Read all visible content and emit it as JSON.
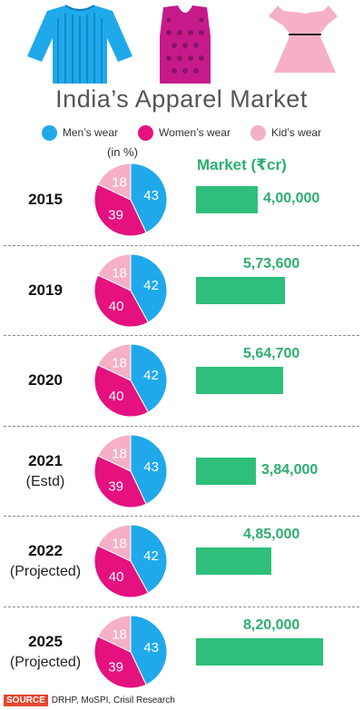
{
  "colors": {
    "mens": "#1fa9ea",
    "womens": "#e5117f",
    "kids": "#f5b0c7",
    "bar": "#2ebf7b",
    "value_text": "#2dae6e"
  },
  "header": {
    "title": "India’s Apparel Market"
  },
  "legend": {
    "items": [
      "Men’s wear",
      "Women’s wear",
      "Kid’s wear"
    ]
  },
  "unit_note": "(in %)",
  "market_header": "Market (₹cr)",
  "footer": {
    "source_tag": "SOURCE",
    "source_text": "DRHP, MoSPI, Crisil Research"
  },
  "icons": [
    "shirt-icon",
    "kurta-icon",
    "frock-icon"
  ],
  "chart_data": {
    "type": "pie+bar",
    "title": "India’s Apparel Market",
    "pie_unit": "(in %)",
    "bar_label": "Market (₹cr)",
    "series_names": [
      "Men’s wear",
      "Women’s wear",
      "Kid’s wear"
    ],
    "rows": [
      {
        "year": "2015",
        "sub": "",
        "shares": [
          43,
          39,
          18
        ],
        "market": 400000,
        "market_label": "4,00,000"
      },
      {
        "year": "2019",
        "sub": "",
        "shares": [
          42,
          40,
          18
        ],
        "market": 573600,
        "market_label": "5,73,600"
      },
      {
        "year": "2020",
        "sub": "",
        "shares": [
          42,
          40,
          18
        ],
        "market": 564700,
        "market_label": "5,64,700"
      },
      {
        "year": "2021",
        "sub": "(Estd)",
        "shares": [
          43,
          39,
          18
        ],
        "market": 384000,
        "market_label": "3,84,000"
      },
      {
        "year": "2022",
        "sub": "(Projected)",
        "shares": [
          42,
          40,
          18
        ],
        "market": 485000,
        "market_label": "4,85,000"
      },
      {
        "year": "2025",
        "sub": "(Projected)",
        "shares": [
          43,
          39,
          18
        ],
        "market": 820000,
        "market_label": "8,20,000"
      }
    ]
  }
}
